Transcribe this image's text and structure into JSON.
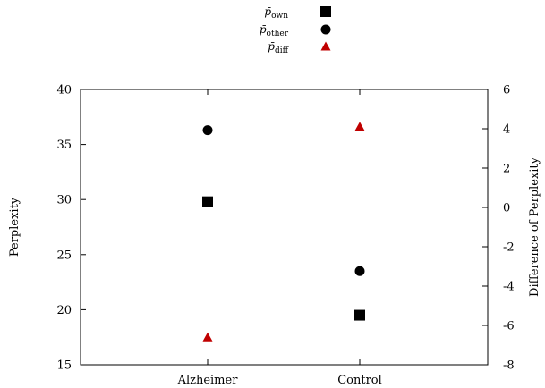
{
  "chart_data": {
    "type": "scatter",
    "categories": [
      "Alzheimer",
      "Control"
    ],
    "xlabel": "",
    "ylabel": "Perplexity",
    "y2label": "Difference of Perplexity",
    "ylim": [
      15,
      40
    ],
    "yticks": [
      15,
      20,
      25,
      30,
      35,
      40
    ],
    "y2lim": [
      -8,
      6
    ],
    "y2ticks": [
      -8,
      -6,
      -4,
      -2,
      0,
      2,
      4,
      6
    ],
    "grid": false,
    "legend_position": "top-center",
    "series": [
      {
        "name": "p̄own",
        "legend_base": "p̄",
        "legend_sub": "own",
        "axis": "left",
        "marker": "square",
        "color": "#000000",
        "values": [
          29.8,
          19.5
        ]
      },
      {
        "name": "p̄other",
        "legend_base": "p̄",
        "legend_sub": "other",
        "axis": "left",
        "marker": "circle",
        "color": "#000000",
        "values": [
          36.3,
          23.5
        ]
      },
      {
        "name": "p̄diff",
        "legend_base": "p̄",
        "legend_sub": "diff",
        "axis": "right",
        "marker": "triangle",
        "color": "#c00000",
        "values": [
          -6.6,
          4.1
        ]
      }
    ]
  }
}
